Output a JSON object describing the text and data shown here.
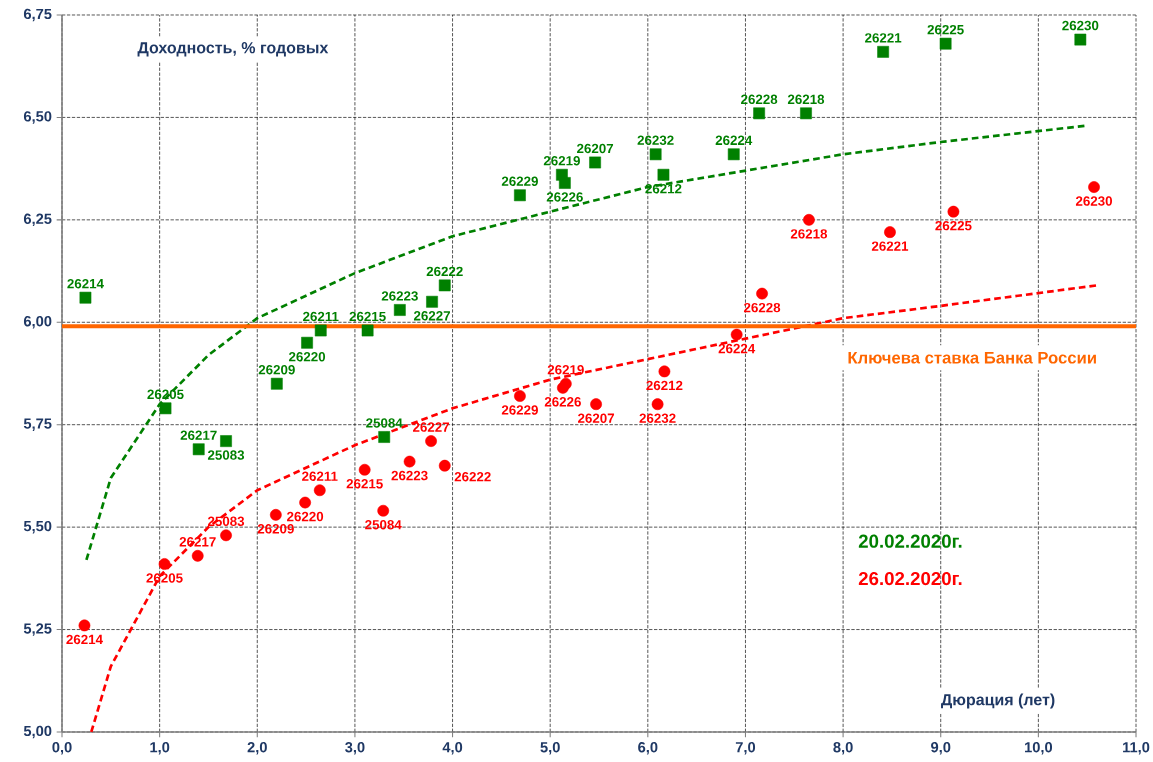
{
  "chart_data": {
    "type": "scatter",
    "xlabel": "Дюрация (лет)",
    "ylabel": "Доходность, % годовых",
    "xlim": [
      0,
      11
    ],
    "ylim": [
      5.0,
      6.75
    ],
    "xticks": [
      {
        "value": 0,
        "label": "0,0"
      },
      {
        "value": 1,
        "label": "1,0"
      },
      {
        "value": 2,
        "label": "2,0"
      },
      {
        "value": 3,
        "label": "3,0"
      },
      {
        "value": 4,
        "label": "4,0"
      },
      {
        "value": 5,
        "label": "5,0"
      },
      {
        "value": 6,
        "label": "6,0"
      },
      {
        "value": 7,
        "label": "7,0"
      },
      {
        "value": 8,
        "label": "8,0"
      },
      {
        "value": 9,
        "label": "9,0"
      },
      {
        "value": 10,
        "label": "10,0"
      },
      {
        "value": 11,
        "label": "11,0"
      }
    ],
    "yticks": [
      {
        "value": 5.0,
        "label": "5,00"
      },
      {
        "value": 5.25,
        "label": "5,25"
      },
      {
        "value": 5.5,
        "label": "5,50"
      },
      {
        "value": 5.75,
        "label": "5,75"
      },
      {
        "value": 6.0,
        "label": "6,00"
      },
      {
        "value": 6.25,
        "label": "6,25"
      },
      {
        "value": 6.5,
        "label": "6,50"
      },
      {
        "value": 6.75,
        "label": "6,75"
      }
    ],
    "grid": true,
    "legend": "bottom right",
    "series": [
      {
        "name": "20.02.2020г.",
        "marker": "square",
        "color": "#008000",
        "x": [
          0.24,
          1.06,
          1.4,
          1.68,
          2.2,
          2.51,
          2.65,
          3.13,
          3.46,
          3.3,
          3.79,
          3.92,
          4.69,
          5.12,
          5.15,
          5.46,
          6.08,
          6.16,
          6.88,
          7.14,
          7.62,
          8.41,
          9.05,
          10.43
        ],
        "values": [
          6.06,
          5.79,
          5.69,
          5.71,
          5.85,
          5.95,
          5.98,
          5.98,
          6.03,
          5.72,
          6.05,
          6.09,
          6.31,
          6.36,
          6.34,
          6.39,
          6.41,
          6.36,
          6.41,
          6.51,
          6.51,
          6.66,
          6.68,
          6.69
        ]
      },
      {
        "name": "26.02.2020г.",
        "marker": "circle",
        "color": "#ff0000",
        "x": [
          0.23,
          1.05,
          1.39,
          1.68,
          2.19,
          2.49,
          2.64,
          3.1,
          3.29,
          3.56,
          3.78,
          3.92,
          4.69,
          5.13,
          5.16,
          5.47,
          6.1,
          6.17,
          6.91,
          7.17,
          7.65,
          8.48,
          9.13,
          10.57
        ],
        "values": [
          5.26,
          5.41,
          5.43,
          5.48,
          5.53,
          5.56,
          5.59,
          5.64,
          5.54,
          5.66,
          5.71,
          5.65,
          5.82,
          5.84,
          5.85,
          5.8,
          5.8,
          5.88,
          5.97,
          6.07,
          6.25,
          6.22,
          6.27,
          6.33
        ]
      },
      {
        "type": "line",
        "line_style": "dashed",
        "marker": "none",
        "color": "#008000",
        "x": [
          0.25,
          0.5,
          1.0,
          1.5,
          2.0,
          3.0,
          4.0,
          5.0,
          6.0,
          7.0,
          8.0,
          9.0,
          10.5
        ],
        "values": [
          5.42,
          5.62,
          5.8,
          5.92,
          6.01,
          6.12,
          6.21,
          6.27,
          6.33,
          6.37,
          6.41,
          6.44,
          6.48
        ]
      },
      {
        "type": "line",
        "line_style": "dashed",
        "marker": "none",
        "color": "#ff0000",
        "x": [
          0.3,
          0.5,
          1.0,
          1.5,
          2.0,
          3.0,
          4.0,
          5.0,
          6.0,
          7.0,
          8.0,
          9.0,
          10.6
        ],
        "values": [
          5.0,
          5.16,
          5.38,
          5.5,
          5.59,
          5.7,
          5.79,
          5.86,
          5.91,
          5.96,
          6.01,
          6.04,
          6.09
        ]
      }
    ],
    "ref_lines": [
      {
        "axis": "y",
        "value": 5.99,
        "label": "Ключева ставка Банка России",
        "color": "#ff6600",
        "line_style": "solid"
      }
    ],
    "annotations": [
      {
        "text": "26214",
        "x": 0.24,
        "y": 6.06
      },
      {
        "text": "26205",
        "x": 1.06,
        "y": 5.79
      },
      {
        "text": "26217",
        "x": 1.4,
        "y": 5.69
      },
      {
        "text": "25083",
        "x": 1.68,
        "y": 5.71
      },
      {
        "text": "26209",
        "x": 2.2,
        "y": 5.85
      },
      {
        "text": "26220",
        "x": 2.51,
        "y": 5.95
      },
      {
        "text": "26211",
        "x": 2.65,
        "y": 5.98
      },
      {
        "text": "26215",
        "x": 3.13,
        "y": 5.98
      },
      {
        "text": "26223",
        "x": 3.46,
        "y": 6.03
      },
      {
        "text": "25084",
        "x": 3.3,
        "y": 5.72
      },
      {
        "text": "26227",
        "x": 3.79,
        "y": 6.05
      },
      {
        "text": "26222",
        "x": 3.92,
        "y": 6.09
      },
      {
        "text": "26229",
        "x": 4.69,
        "y": 6.31
      },
      {
        "text": "26219",
        "x": 5.12,
        "y": 6.36
      },
      {
        "text": "26226",
        "x": 5.15,
        "y": 6.34
      },
      {
        "text": "26207",
        "x": 5.46,
        "y": 6.39
      },
      {
        "text": "26232",
        "x": 6.08,
        "y": 6.41
      },
      {
        "text": "26212",
        "x": 6.16,
        "y": 6.36
      },
      {
        "text": "26224",
        "x": 6.88,
        "y": 6.41
      },
      {
        "text": "26228",
        "x": 7.14,
        "y": 6.51
      },
      {
        "text": "26218",
        "x": 7.62,
        "y": 6.51
      },
      {
        "text": "26221",
        "x": 8.41,
        "y": 6.66
      },
      {
        "text": "26225",
        "x": 9.05,
        "y": 6.68
      },
      {
        "text": "26230",
        "x": 10.43,
        "y": 6.69
      },
      {
        "text": "26214",
        "x": 0.23,
        "y": 5.26
      },
      {
        "text": "26205",
        "x": 1.05,
        "y": 5.41
      },
      {
        "text": "26217",
        "x": 1.39,
        "y": 5.43
      },
      {
        "text": "25083",
        "x": 1.68,
        "y": 5.48
      },
      {
        "text": "26209",
        "x": 2.19,
        "y": 5.53
      },
      {
        "text": "26220",
        "x": 2.49,
        "y": 5.56
      },
      {
        "text": "26211",
        "x": 2.64,
        "y": 5.59
      },
      {
        "text": "26215",
        "x": 3.1,
        "y": 5.64
      },
      {
        "text": "25084",
        "x": 3.29,
        "y": 5.54
      },
      {
        "text": "26223",
        "x": 3.56,
        "y": 5.66
      },
      {
        "text": "26227",
        "x": 3.78,
        "y": 5.71
      },
      {
        "text": "26222",
        "x": 3.92,
        "y": 5.65
      },
      {
        "text": "26229",
        "x": 4.69,
        "y": 5.82
      },
      {
        "text": "26226",
        "x": 5.13,
        "y": 5.84
      },
      {
        "text": "26219",
        "x": 5.16,
        "y": 5.85
      },
      {
        "text": "26207",
        "x": 5.47,
        "y": 5.8
      },
      {
        "text": "26232",
        "x": 6.1,
        "y": 5.8
      },
      {
        "text": "26212",
        "x": 6.17,
        "y": 5.88
      },
      {
        "text": "26224",
        "x": 6.91,
        "y": 5.97
      },
      {
        "text": "26228",
        "x": 7.17,
        "y": 6.07
      },
      {
        "text": "26218",
        "x": 7.65,
        "y": 6.25
      },
      {
        "text": "26221",
        "x": 8.48,
        "y": 6.22
      },
      {
        "text": "26225",
        "x": 9.13,
        "y": 6.27
      },
      {
        "text": "26230",
        "x": 10.57,
        "y": 6.33
      }
    ]
  }
}
